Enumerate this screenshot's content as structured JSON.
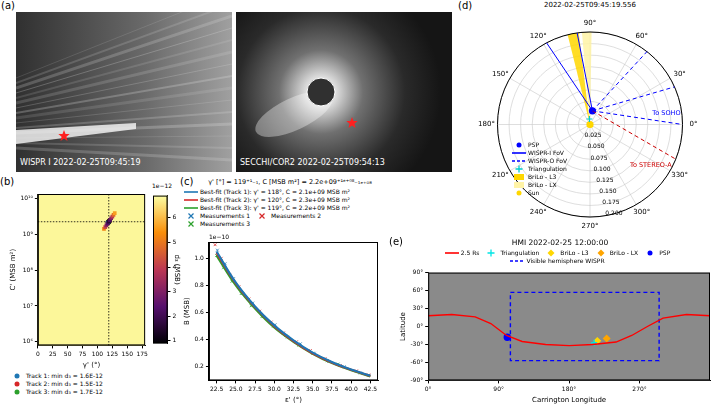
{
  "panel_a": {
    "letter": "(a)",
    "images": [
      {
        "label": "WISPR I 2022-02-25T09:45:19"
      },
      {
        "label": "SECCHI/COR2 2022-02-25T09:54:13"
      }
    ]
  },
  "chart_data": [
    {
      "letter": "(b)",
      "type": "heatmap",
      "xlabel": "γ' (°)",
      "ylabel": "C' (MSB m²)",
      "log": "y",
      "grid": false,
      "legend": "bottom",
      "xlim": [
        0,
        180
      ],
      "xticks": [
        0,
        25,
        50,
        75,
        100,
        125,
        150,
        175
      ],
      "ylim": [
        800000,
        13000000000
      ],
      "yticks": [
        {
          "value": 1000000,
          "label": "10⁶"
        },
        {
          "value": 10000000,
          "label": "10⁷"
        },
        {
          "value": 100000000,
          "label": "10⁸"
        },
        {
          "value": 1000000000,
          "label": "10⁹"
        },
        {
          "value": 10000000000,
          "label": "10¹⁰"
        }
      ],
      "background_value": 6.8,
      "cells": [
        {
          "x": 111,
          "y": 1400000000,
          "value": 5.2
        },
        {
          "x": 113,
          "y": 1550000000,
          "value": 4.2
        },
        {
          "x": 115,
          "y": 1750000000,
          "value": 3.2
        },
        {
          "x": 117,
          "y": 1950000000,
          "value": 2.3
        },
        {
          "x": 119,
          "y": 2200000000,
          "value": 1.6
        },
        {
          "x": 121,
          "y": 2450000000,
          "value": 2.2
        },
        {
          "x": 123,
          "y": 2750000000,
          "value": 3.0
        },
        {
          "x": 125,
          "y": 3050000000,
          "value": 3.9
        },
        {
          "x": 127,
          "y": 3400000000,
          "value": 4.8
        },
        {
          "x": 129,
          "y": 3800000000,
          "value": 5.6
        }
      ],
      "crosshair": {
        "x": 119,
        "y": 2200000000
      },
      "series": [
        {
          "name": "Track 1: min d₃ = 1.6E-12",
          "color": "#1f77b4",
          "marker": "circle",
          "x": [
            118
          ],
          "values": [
            2100000000
          ]
        },
        {
          "name": "Track 2: min d₃ = 1.5E-12",
          "color": "#d62728",
          "marker": "circle",
          "x": [
            120
          ],
          "values": [
            2300000000
          ]
        },
        {
          "name": "Track 3: min d₃ = 1.7E-12",
          "color": "#2ca02c",
          "marker": "circle",
          "x": [
            119
          ],
          "values": [
            2200000000
          ]
        }
      ],
      "colorbar": {
        "label": "d₃ (MSB)",
        "scale_label": "1e−12",
        "lim": [
          0.9,
          6.9
        ],
        "ticks": [
          1,
          2,
          3,
          4,
          5,
          6
        ]
      }
    },
    {
      "letter": "(c)",
      "type": "line",
      "title": "γ' [°] = 119⁺¹₋₁, C [MSB m²] = 2.2e+09⁺¹ᵉ⁺⁰⁸₋₁ₑ₊₀₈",
      "xlabel": "ε' (°)",
      "ylabel": "B (MSB)",
      "y_scale_label": "1e−10",
      "grid": false,
      "legend": "top",
      "xlim": [
        21.5,
        43.5
      ],
      "xticks": [
        22.5,
        {
          "value": 25,
          "label": "25.0"
        },
        27.5,
        {
          "value": 30,
          "label": "30.0"
        },
        32.5,
        {
          "value": 35,
          "label": "35.0"
        },
        37.5,
        {
          "value": 40,
          "label": "40.0"
        },
        42.5
      ],
      "ylim": [
        0.1,
        1.12
      ],
      "yticks": [
        0.2,
        0.4,
        0.6,
        0.8,
        {
          "value": 1,
          "label": "1.0"
        }
      ],
      "series": [
        {
          "name": "Best-fit (Track 1): γ' = 118°, C = 2.1e+09 MSB m²",
          "type": "line",
          "line_style": "solid",
          "color": "#1f77b4",
          "x": [
            22.5,
            25,
            27.5,
            30,
            32.5,
            35,
            37.5,
            40,
            42.5
          ],
          "values": [
            1.05,
            0.82,
            0.645,
            0.505,
            0.395,
            0.305,
            0.235,
            0.18,
            0.135
          ]
        },
        {
          "name": "Best-fit (Track 2): γ' = 120°, C = 2.3e+09 MSB m²",
          "type": "line",
          "line_style": "solid",
          "color": "#d62728",
          "x": [
            22.5,
            25,
            27.5,
            30,
            32.5,
            35,
            37.5,
            40,
            42.5
          ],
          "values": [
            1.04,
            0.815,
            0.64,
            0.5,
            0.39,
            0.3,
            0.232,
            0.178,
            0.133
          ]
        },
        {
          "name": "Best-fit (Track 3): γ' = 119°, C = 2.2e+09 MSB m²",
          "type": "line",
          "line_style": "solid",
          "color": "#2ca02c",
          "x": [
            22.5,
            25,
            27.5,
            30,
            32.5,
            35,
            37.5,
            40,
            42.5
          ],
          "values": [
            1.02,
            0.8,
            0.63,
            0.49,
            0.385,
            0.297,
            0.228,
            0.175,
            0.13
          ]
        },
        {
          "name": "Measurements 1",
          "type": "scatter",
          "marker": "x",
          "color": "#1f77b4",
          "x": [
            22.6,
            23.6,
            24.7,
            25.9,
            27.2,
            28.6,
            30.1,
            31.7,
            33.4,
            35.2,
            37.1,
            39.1,
            41.2
          ],
          "values": [
            1.06,
            0.96,
            0.85,
            0.74,
            0.67,
            0.57,
            0.51,
            0.42,
            0.37,
            0.3,
            0.24,
            0.2,
            0.155
          ]
        },
        {
          "name": "Measurements 2",
          "type": "scatter",
          "marker": "x",
          "color": "#d62728",
          "x": [
            22.3,
            23.1,
            24.2,
            25.4,
            26.7,
            28.1,
            29.6,
            31.2,
            32.9,
            34.7,
            36.6,
            38.6,
            40.7,
            42.3
          ],
          "values": [
            1.1,
            1.0,
            0.88,
            0.79,
            0.7,
            0.61,
            0.53,
            0.45,
            0.385,
            0.32,
            0.26,
            0.21,
            0.17,
            0.14
          ]
        },
        {
          "name": "Measurements 3",
          "type": "scatter",
          "marker": "x",
          "color": "#2ca02c",
          "x": [
            22.5,
            23.4,
            24.5,
            25.7,
            27.0,
            28.4,
            29.9,
            31.5,
            33.2,
            35.0,
            36.9,
            38.3
          ],
          "values": [
            1.02,
            0.93,
            0.83,
            0.74,
            0.65,
            0.57,
            0.5,
            0.43,
            0.36,
            0.3,
            0.245,
            0.22
          ]
        }
      ]
    },
    {
      "letter": "(d)",
      "type": "polar",
      "title": "2022-02-25T09:45:19.556",
      "grid": true,
      "legend": "lower left",
      "rlim": [
        0,
        0.2
      ],
      "rticks": [
        0.025,
        {
          "value": 0.05,
          "label": "0.050"
        },
        0.075,
        {
          "value": 0.1,
          "label": "0.100"
        },
        0.125,
        {
          "value": 0.15,
          "label": "0.150"
        },
        0.175,
        {
          "value": 0.2,
          "label": "0.200"
        }
      ],
      "angle_ticks": [
        {
          "value": 0,
          "label": "0°"
        },
        {
          "value": 30,
          "label": "30°"
        },
        {
          "value": 60,
          "label": "60°"
        },
        {
          "value": 90,
          "label": "90°"
        },
        {
          "value": 120,
          "label": "120°"
        },
        {
          "value": 150,
          "label": "150°"
        },
        {
          "value": 180,
          "label": "180°"
        },
        {
          "value": 210,
          "label": "210°"
        },
        {
          "value": 240,
          "label": "240°"
        },
        {
          "value": 270,
          "label": "270°"
        },
        {
          "value": 300,
          "label": "300°"
        },
        {
          "value": 330,
          "label": "330°"
        }
      ],
      "series": [
        {
          "name": "PSP",
          "color": "#0000ff",
          "marker": "circle",
          "points": [
            [
              0.03,
              80
            ]
          ]
        },
        {
          "name": "WISPR-I FoV",
          "color": "#0000ff",
          "line_style": "solid",
          "lines": [
            [
              [
                0.03,
                80
              ],
              [
                0.2,
                118
              ]
            ],
            [
              [
                0.03,
                80
              ],
              [
                0.2,
                98
              ]
            ]
          ]
        },
        {
          "name": "WISPR-O FoV",
          "color": "#0000ff",
          "line_style": "dashed",
          "lines": [
            [
              [
                0.03,
                80
              ],
              [
                0.2,
                52
              ]
            ],
            [
              [
                0.03,
                80
              ],
              [
                0.2,
                24
              ]
            ]
          ]
        },
        {
          "name": "Triangulation",
          "color": "#00cccc",
          "marker": "cross",
          "points": [
            [
              0.012,
              96
            ]
          ]
        },
        {
          "name": "BriLo - L3",
          "color": "#ffd700",
          "type": "wedge",
          "angles": [
            97,
            104
          ],
          "r": 0.2
        },
        {
          "name": "BriLo - LX",
          "color": "#fff3a6",
          "type": "wedge",
          "angles": [
            89,
            95
          ],
          "r": 0.2
        },
        {
          "name": "Sun",
          "color": "#ffd700",
          "marker": "circle",
          "points": [
            [
              0,
              0
            ]
          ]
        }
      ],
      "annotations": [
        {
          "text": "To SOHO",
          "color": "#0000ff",
          "line_style": "dashed",
          "points": [
            [
              0.03,
              80
            ],
            [
              0.2,
              0
            ]
          ]
        },
        {
          "text": "To STEREO-A",
          "color": "#cc0000",
          "line_style": "dashed",
          "points": [
            [
              0.03,
              80
            ],
            [
              0.2,
              338
            ]
          ]
        }
      ]
    },
    {
      "letter": "(e)",
      "type": "line",
      "title": "HMI  2022-02-25 12:00:00",
      "xlabel": "Carrington Longitude",
      "ylabel": "Latitude",
      "grid": false,
      "legend": "top",
      "xlim": [
        0,
        360
      ],
      "xticks": [
        {
          "value": 0,
          "label": "0°"
        },
        {
          "value": 90,
          "label": "90°"
        },
        {
          "value": 180,
          "label": "180°"
        },
        {
          "value": 270,
          "label": "270°"
        }
      ],
      "ylim": [
        -90,
        90
      ],
      "yticks": [
        {
          "value": -90,
          "label": "-90°"
        },
        {
          "value": -60,
          "label": "-60°"
        },
        {
          "value": -30,
          "label": "-30°"
        },
        {
          "value": 0,
          "label": "0°"
        },
        {
          "value": 30,
          "label": "30°"
        },
        {
          "value": 60,
          "label": "60°"
        },
        {
          "value": 90,
          "label": "90°"
        }
      ],
      "series": [
        {
          "name": "2.5 Rs",
          "color": "#ff0000",
          "line_style": "solid",
          "x": [
            0,
            30,
            60,
            80,
            100,
            120,
            150,
            180,
            210,
            240,
            260,
            280,
            300,
            330,
            360
          ],
          "values": [
            18,
            20,
            16,
            5,
            -15,
            -25,
            -30,
            -32,
            -30,
            -26,
            -15,
            0,
            14,
            20,
            18
          ]
        },
        {
          "name": "Triangulation",
          "color": "#00e5e5",
          "marker": "cross",
          "x": [
            212
          ],
          "values": [
            -27
          ]
        },
        {
          "name": "BriLo - L3",
          "color": "#ffd700",
          "marker": "diamond",
          "x": [
            216
          ],
          "values": [
            -24
          ]
        },
        {
          "name": "BriLo - LX",
          "color": "#ffa500",
          "marker": "diamond",
          "x": [
            228
          ],
          "values": [
            -20
          ]
        },
        {
          "name": "PSP",
          "color": "#0000ff",
          "marker": "circle",
          "x": [
            101
          ],
          "values": [
            -18
          ]
        },
        {
          "name": "Visible hemisphere WISPR",
          "color": "#0000ff",
          "line_style": "dashed",
          "x": [
            105,
            295,
            295,
            105,
            105
          ],
          "values": [
            57,
            57,
            -57,
            -57,
            57
          ]
        }
      ]
    }
  ]
}
